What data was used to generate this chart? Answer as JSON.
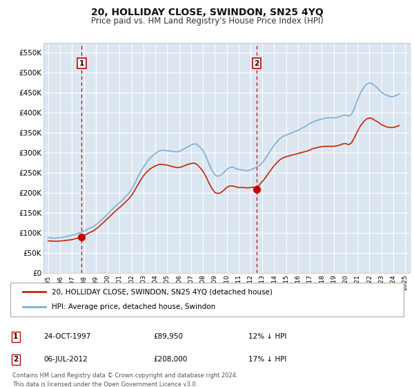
{
  "title": "20, HOLLIDAY CLOSE, SWINDON, SN25 4YQ",
  "subtitle": "Price paid vs. HM Land Registry's House Price Index (HPI)",
  "title_fontsize": 10,
  "subtitle_fontsize": 8.5,
  "background_color": "#ffffff",
  "plot_bg_color": "#dce6f1",
  "grid_color": "#ffffff",
  "ylim": [
    0,
    575000
  ],
  "yticks": [
    0,
    50000,
    100000,
    150000,
    200000,
    250000,
    300000,
    350000,
    400000,
    450000,
    500000,
    550000
  ],
  "ytick_labels": [
    "£0",
    "£50K",
    "£100K",
    "£150K",
    "£200K",
    "£250K",
    "£300K",
    "£350K",
    "£400K",
    "£450K",
    "£500K",
    "£550K"
  ],
  "xlim_start": 1994.6,
  "xlim_end": 2025.4,
  "sale1_x": 1997.81,
  "sale1_y": 89950,
  "sale2_x": 2012.51,
  "sale2_y": 208000,
  "sale_color": "#cc0000",
  "sale_marker_size": 7,
  "hpi_line_color": "#7ab0d4",
  "price_line_color": "#cc2200",
  "dashed_line_color": "#cc0000",
  "legend_label1": "20, HOLLIDAY CLOSE, SWINDON, SN25 4YQ (detached house)",
  "legend_label2": "HPI: Average price, detached house, Swindon",
  "table_row1": [
    "1",
    "24-OCT-1997",
    "£89,950",
    "12% ↓ HPI"
  ],
  "table_row2": [
    "2",
    "06-JUL-2012",
    "£208,000",
    "17% ↓ HPI"
  ],
  "footer": "Contains HM Land Registry data © Crown copyright and database right 2024.\nThis data is licensed under the Open Government Licence v3.0.",
  "hpi_data_x": [
    1995.0,
    1995.25,
    1995.5,
    1995.75,
    1996.0,
    1996.25,
    1996.5,
    1996.75,
    1997.0,
    1997.25,
    1997.5,
    1997.75,
    1998.0,
    1998.25,
    1998.5,
    1998.75,
    1999.0,
    1999.25,
    1999.5,
    1999.75,
    2000.0,
    2000.25,
    2000.5,
    2000.75,
    2001.0,
    2001.25,
    2001.5,
    2001.75,
    2002.0,
    2002.25,
    2002.5,
    2002.75,
    2003.0,
    2003.25,
    2003.5,
    2003.75,
    2004.0,
    2004.25,
    2004.5,
    2004.75,
    2005.0,
    2005.25,
    2005.5,
    2005.75,
    2006.0,
    2006.25,
    2006.5,
    2006.75,
    2007.0,
    2007.25,
    2007.5,
    2007.75,
    2008.0,
    2008.25,
    2008.5,
    2008.75,
    2009.0,
    2009.25,
    2009.5,
    2009.75,
    2010.0,
    2010.25,
    2010.5,
    2010.75,
    2011.0,
    2011.25,
    2011.5,
    2011.75,
    2012.0,
    2012.25,
    2012.5,
    2012.75,
    2013.0,
    2013.25,
    2013.5,
    2013.75,
    2014.0,
    2014.25,
    2014.5,
    2014.75,
    2015.0,
    2015.25,
    2015.5,
    2015.75,
    2016.0,
    2016.25,
    2016.5,
    2016.75,
    2017.0,
    2017.25,
    2017.5,
    2017.75,
    2018.0,
    2018.25,
    2018.5,
    2018.75,
    2019.0,
    2019.25,
    2019.5,
    2019.75,
    2020.0,
    2020.25,
    2020.5,
    2020.75,
    2021.0,
    2021.25,
    2021.5,
    2021.75,
    2022.0,
    2022.25,
    2022.5,
    2022.75,
    2023.0,
    2023.25,
    2023.5,
    2023.75,
    2024.0,
    2024.25,
    2024.5
  ],
  "hpi_data_y": [
    88000,
    87000,
    86500,
    87000,
    88000,
    89000,
    90500,
    92000,
    94000,
    96000,
    98500,
    101000,
    104000,
    108000,
    112000,
    115000,
    120000,
    126000,
    133000,
    140000,
    147000,
    155000,
    162000,
    169000,
    175000,
    182000,
    190000,
    198000,
    208000,
    222000,
    237000,
    252000,
    264000,
    275000,
    285000,
    292000,
    298000,
    303000,
    306000,
    306000,
    305000,
    304000,
    303000,
    302000,
    303000,
    307000,
    311000,
    315000,
    319000,
    322000,
    321000,
    314000,
    306000,
    291000,
    273000,
    257000,
    245000,
    241000,
    244000,
    250000,
    258000,
    263000,
    264000,
    261000,
    258000,
    257000,
    256000,
    255000,
    257000,
    260000,
    264000,
    268000,
    275000,
    285000,
    297000,
    308000,
    319000,
    328000,
    336000,
    341000,
    344000,
    347000,
    350000,
    353000,
    356000,
    360000,
    364000,
    368000,
    373000,
    377000,
    380000,
    382000,
    384000,
    386000,
    387000,
    387000,
    387000,
    388000,
    390000,
    393000,
    394000,
    391000,
    396000,
    412000,
    432000,
    449000,
    462000,
    471000,
    474000,
    472000,
    466000,
    459000,
    451000,
    446000,
    443000,
    440000,
    440000,
    443000,
    447000
  ],
  "price_data_x": [
    1995.0,
    1995.25,
    1995.5,
    1995.75,
    1996.0,
    1996.25,
    1996.5,
    1996.75,
    1997.0,
    1997.25,
    1997.5,
    1997.75,
    1998.0,
    1998.25,
    1998.5,
    1998.75,
    1999.0,
    1999.25,
    1999.5,
    1999.75,
    2000.0,
    2000.25,
    2000.5,
    2000.75,
    2001.0,
    2001.25,
    2001.5,
    2001.75,
    2002.0,
    2002.25,
    2002.5,
    2002.75,
    2003.0,
    2003.25,
    2003.5,
    2003.75,
    2004.0,
    2004.25,
    2004.5,
    2004.75,
    2005.0,
    2005.25,
    2005.5,
    2005.75,
    2006.0,
    2006.25,
    2006.5,
    2006.75,
    2007.0,
    2007.25,
    2007.5,
    2007.75,
    2008.0,
    2008.25,
    2008.5,
    2008.75,
    2009.0,
    2009.25,
    2009.5,
    2009.75,
    2010.0,
    2010.25,
    2010.5,
    2010.75,
    2011.0,
    2011.25,
    2011.5,
    2011.75,
    2012.0,
    2012.25,
    2012.5,
    2012.75,
    2013.0,
    2013.25,
    2013.5,
    2013.75,
    2014.0,
    2014.25,
    2014.5,
    2014.75,
    2015.0,
    2015.25,
    2015.5,
    2015.75,
    2016.0,
    2016.25,
    2016.5,
    2016.75,
    2017.0,
    2017.25,
    2017.5,
    2017.75,
    2018.0,
    2018.25,
    2018.5,
    2018.75,
    2019.0,
    2019.25,
    2019.5,
    2019.75,
    2020.0,
    2020.25,
    2020.5,
    2020.75,
    2021.0,
    2021.25,
    2021.5,
    2021.75,
    2022.0,
    2022.25,
    2022.5,
    2022.75,
    2023.0,
    2023.25,
    2023.5,
    2023.75,
    2024.0,
    2024.25,
    2024.5
  ],
  "price_data_y": [
    80000,
    79500,
    79000,
    79000,
    79500,
    80000,
    81000,
    82000,
    83000,
    85000,
    87000,
    89950,
    93000,
    97000,
    101000,
    104000,
    109000,
    115000,
    122000,
    129000,
    136000,
    143000,
    150000,
    157000,
    163000,
    170000,
    177000,
    184000,
    193000,
    205000,
    218000,
    231000,
    242000,
    251000,
    258000,
    263000,
    267000,
    270000,
    271000,
    270000,
    269000,
    267000,
    265000,
    263000,
    263000,
    265000,
    268000,
    271000,
    273000,
    274000,
    271000,
    263000,
    254000,
    241000,
    225000,
    211000,
    201000,
    198000,
    200000,
    206000,
    213000,
    217000,
    217000,
    215000,
    213000,
    213000,
    213000,
    212000,
    213000,
    214000,
    208000,
    220000,
    228000,
    237000,
    248000,
    258000,
    268000,
    276000,
    283000,
    287000,
    290000,
    292000,
    294000,
    296000,
    298000,
    300000,
    302000,
    304000,
    307000,
    310000,
    312000,
    314000,
    315000,
    316000,
    316000,
    316000,
    316000,
    317000,
    319000,
    322000,
    323000,
    320000,
    325000,
    338000,
    354000,
    367000,
    377000,
    384000,
    387000,
    385000,
    380000,
    376000,
    370000,
    367000,
    364000,
    363000,
    363000,
    365000,
    368000
  ]
}
